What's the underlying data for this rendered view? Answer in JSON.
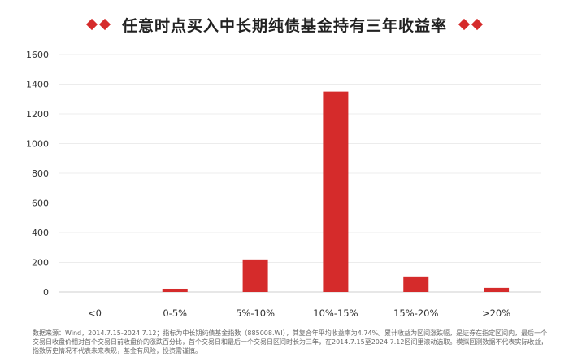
{
  "header": {
    "title": "任意时点买入中长期纯债基金持有三年收益率"
  },
  "chart_data": {
    "type": "bar",
    "title": "任意时点买入中长期纯债基金持有三年收益率",
    "xlabel": "",
    "ylabel": "",
    "categories": [
      "<0",
      "0-5%",
      "5%-10%",
      "10%-15%",
      "15%-20%",
      ">20%"
    ],
    "values": [
      0,
      22,
      220,
      1350,
      105,
      28
    ],
    "ylim": [
      0,
      1600
    ],
    "yticks": [
      "0",
      "200",
      "400",
      "600",
      "800",
      "1000",
      "1200",
      "1400",
      "1600"
    ],
    "grid": true,
    "legend": "none",
    "bar_color": "#d52b2b"
  },
  "footnote": "数据来源：Wind，2014.7.15-2024.7.12；指标为中长期纯债基金指数（885008.WI），其复合年平均收益率为4.74%。累计收益为区间涨跌幅，是证券在指定区间内，最后一个交易日收盘价相对首个交易日前收盘价的涨跌百分比，首个交易日和最后一个交易日区间时长为三年，在2014.7.15至2024.7.12区间里滚动选取。模拟回测数据不代表实际收益，指数历史情况不代表未来表现，基金有风险，投资需谨慎。"
}
